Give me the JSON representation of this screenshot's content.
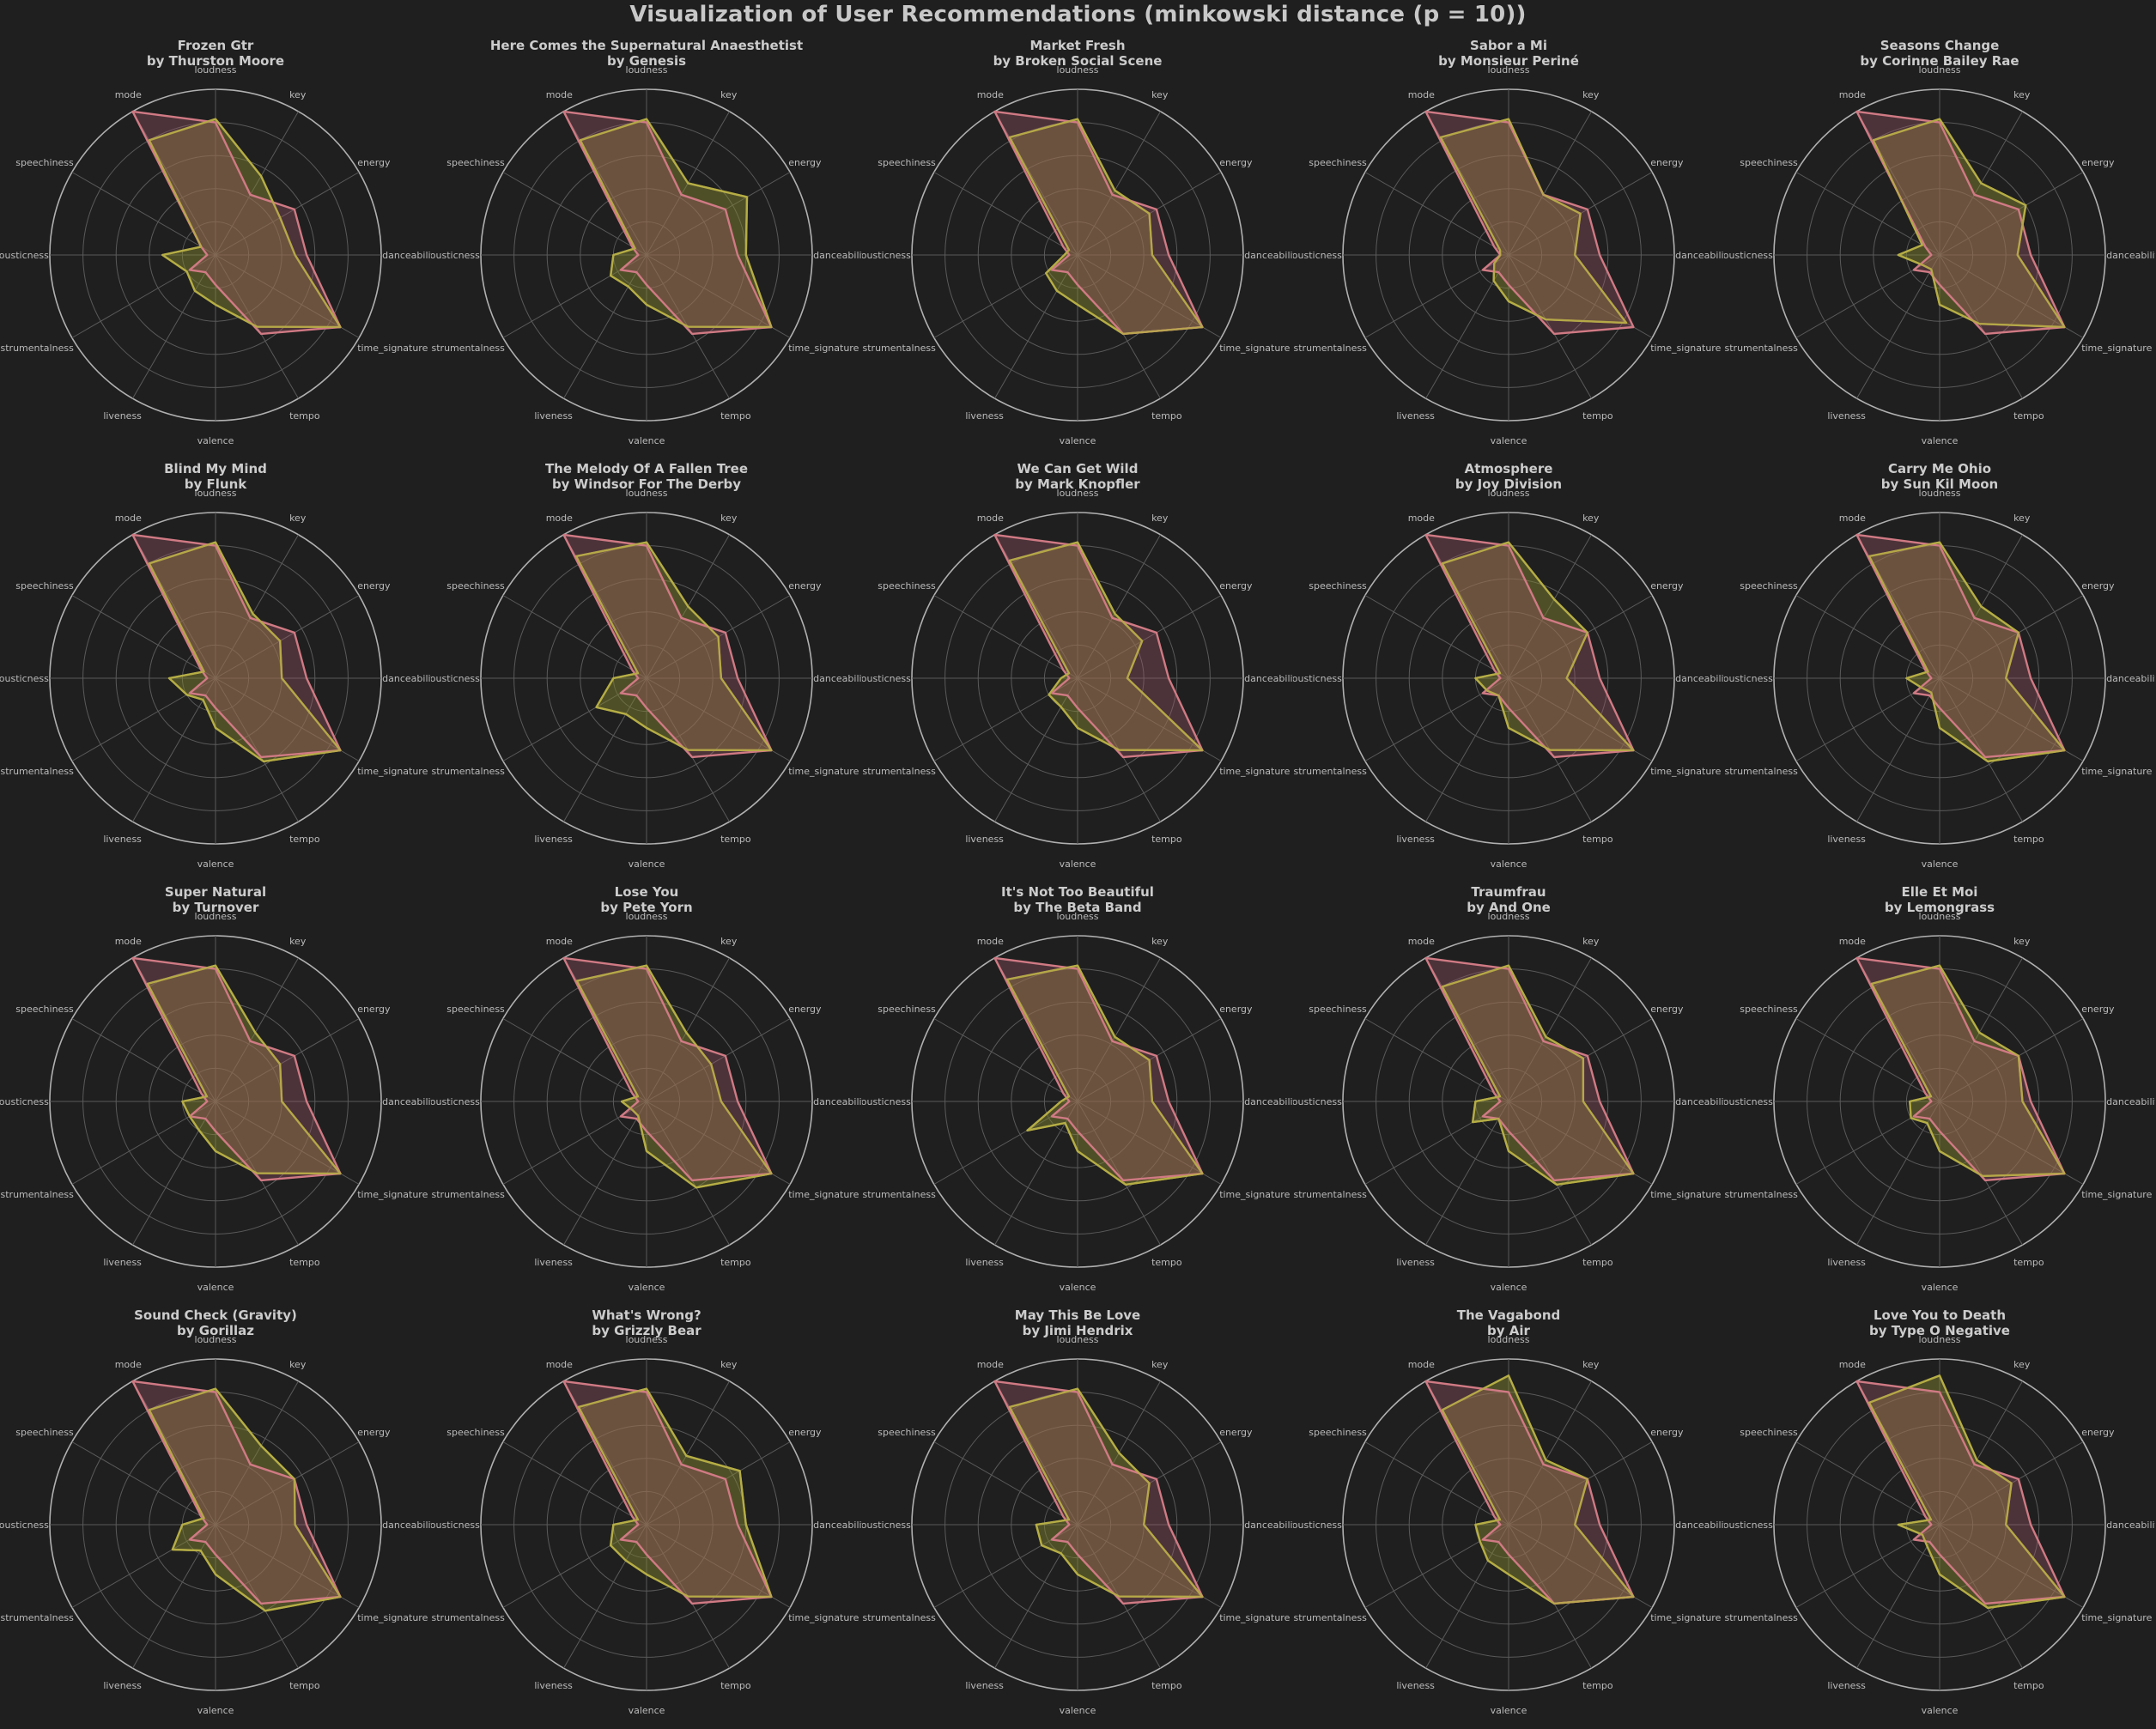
{
  "title": "Visualization of User Recommendations (minkowski distance (p = 10))",
  "colors": {
    "background": "#1f1f1f",
    "user": "#d07a84",
    "user_fill": "#a05a6a",
    "rec": "#b5ad45",
    "rec_fill": "#8a8a30",
    "grid": "#5a5a5a",
    "outer_ring": "#b0b0b0",
    "label": "#bbbbbb"
  },
  "chart_data": {
    "type": "radar",
    "axes": [
      "loudness",
      "key",
      "energy",
      "danceability",
      "time_signature",
      "tempo",
      "valence",
      "liveness",
      "instrumentalness",
      "acousticness",
      "speechiness",
      "mode"
    ],
    "axis_labels_displayed": [
      "loudness",
      "key",
      "energy",
      "danceability",
      "time_signature",
      "tempo",
      "valence",
      "liveness",
      "instrumentalness",
      "acousticness",
      "speechiness",
      "mode"
    ],
    "rlim": [
      0,
      1
    ],
    "rings": 5,
    "grid": true,
    "user_profile": [
      0.8,
      0.42,
      0.55,
      0.55,
      0.87,
      0.55,
      0.18,
      0.12,
      0.18,
      0.05,
      0.1,
      1.0
    ],
    "charts": [
      {
        "title": "Frozen Gtr",
        "subtitle": "by Thurston Moore",
        "values": [
          0.82,
          0.55,
          0.45,
          0.48,
          0.87,
          0.5,
          0.3,
          0.25,
          0.2,
          0.32,
          0.1,
          0.8
        ]
      },
      {
        "title": "Here Comes the Supernatural Anaesthetist",
        "subtitle": "by Genesis",
        "values": [
          0.82,
          0.5,
          0.7,
          0.6,
          0.87,
          0.5,
          0.3,
          0.22,
          0.25,
          0.2,
          0.08,
          0.8
        ]
      },
      {
        "title": "Market Fresh",
        "subtitle": "by Broken Social Scene",
        "values": [
          0.82,
          0.45,
          0.5,
          0.45,
          0.87,
          0.55,
          0.3,
          0.25,
          0.22,
          0.08,
          0.06,
          0.82
        ]
      },
      {
        "title": "Sabor a Mi",
        "subtitle": "by Monsieur Periné",
        "values": [
          0.82,
          0.42,
          0.5,
          0.4,
          0.82,
          0.45,
          0.28,
          0.18,
          0.1,
          0.05,
          0.06,
          0.82
        ]
      },
      {
        "title": "Seasons Change",
        "subtitle": "by Corinne Bailey Rae",
        "values": [
          0.82,
          0.5,
          0.6,
          0.47,
          0.87,
          0.48,
          0.3,
          0.1,
          0.12,
          0.25,
          0.12,
          0.8
        ]
      },
      {
        "title": "Blind My Mind",
        "subtitle": "by Flunk",
        "values": [
          0.82,
          0.45,
          0.45,
          0.4,
          0.87,
          0.58,
          0.3,
          0.15,
          0.2,
          0.28,
          0.08,
          0.8
        ]
      },
      {
        "title": "The Melody Of A Fallen Tree",
        "subtitle": "by Windsor For The Derby",
        "values": [
          0.82,
          0.5,
          0.5,
          0.45,
          0.87,
          0.5,
          0.3,
          0.25,
          0.35,
          0.2,
          0.06,
          0.85
        ]
      },
      {
        "title": "We Can Get Wild",
        "subtitle": "by Mark Knopfler",
        "values": [
          0.82,
          0.45,
          0.45,
          0.3,
          0.87,
          0.5,
          0.3,
          0.2,
          0.2,
          0.1,
          0.06,
          0.82
        ]
      },
      {
        "title": "Atmosphere",
        "subtitle": "by Joy Division",
        "values": [
          0.82,
          0.55,
          0.55,
          0.35,
          0.87,
          0.5,
          0.3,
          0.12,
          0.15,
          0.2,
          0.06,
          0.8
        ]
      },
      {
        "title": "Carry Me Ohio",
        "subtitle": "by Sun Kil Moon",
        "values": [
          0.82,
          0.5,
          0.55,
          0.4,
          0.87,
          0.58,
          0.3,
          0.1,
          0.12,
          0.2,
          0.08,
          0.85
        ]
      },
      {
        "title": "Super Natural",
        "subtitle": "by Turnover",
        "values": [
          0.82,
          0.48,
          0.45,
          0.4,
          0.87,
          0.5,
          0.3,
          0.2,
          0.18,
          0.2,
          0.06,
          0.82
        ]
      },
      {
        "title": "Lose You",
        "subtitle": "by Pete Yorn",
        "values": [
          0.82,
          0.48,
          0.45,
          0.45,
          0.87,
          0.6,
          0.3,
          0.1,
          0.1,
          0.15,
          0.06,
          0.84
        ]
      },
      {
        "title": "It's Not Too Beautiful",
        "subtitle": "by The Beta Band",
        "values": [
          0.82,
          0.45,
          0.5,
          0.45,
          0.87,
          0.58,
          0.3,
          0.15,
          0.35,
          0.1,
          0.06,
          0.85
        ]
      },
      {
        "title": "Traumfrau",
        "subtitle": "by And One",
        "values": [
          0.82,
          0.45,
          0.52,
          0.45,
          0.87,
          0.58,
          0.3,
          0.12,
          0.25,
          0.2,
          0.06,
          0.8
        ]
      },
      {
        "title": "Elle Et Moi",
        "subtitle": "by Lemongrass",
        "values": [
          0.82,
          0.48,
          0.55,
          0.5,
          0.87,
          0.52,
          0.3,
          0.15,
          0.2,
          0.18,
          0.06,
          0.82
        ]
      },
      {
        "title": "Sound Check (Gravity)",
        "subtitle": "by Gorillaz",
        "values": [
          0.82,
          0.55,
          0.55,
          0.48,
          0.87,
          0.6,
          0.3,
          0.18,
          0.3,
          0.2,
          0.08,
          0.8
        ]
      },
      {
        "title": "What's Wrong?",
        "subtitle": "by Grizzly Bear",
        "values": [
          0.82,
          0.48,
          0.65,
          0.6,
          0.87,
          0.5,
          0.3,
          0.25,
          0.25,
          0.2,
          0.06,
          0.82
        ]
      },
      {
        "title": "May This Be Love",
        "subtitle": "by Jimi Hendrix",
        "values": [
          0.82,
          0.5,
          0.5,
          0.4,
          0.87,
          0.5,
          0.3,
          0.2,
          0.25,
          0.25,
          0.06,
          0.82
        ]
      },
      {
        "title": "The Vagabond",
        "subtitle": "by Air",
        "values": [
          0.9,
          0.45,
          0.55,
          0.4,
          0.87,
          0.55,
          0.3,
          0.25,
          0.2,
          0.2,
          0.06,
          0.8
        ]
      },
      {
        "title": "Love You to Death",
        "subtitle": "by Type O Negative",
        "values": [
          0.9,
          0.45,
          0.5,
          0.4,
          0.87,
          0.58,
          0.3,
          0.15,
          0.12,
          0.25,
          0.06,
          0.85
        ]
      }
    ]
  }
}
